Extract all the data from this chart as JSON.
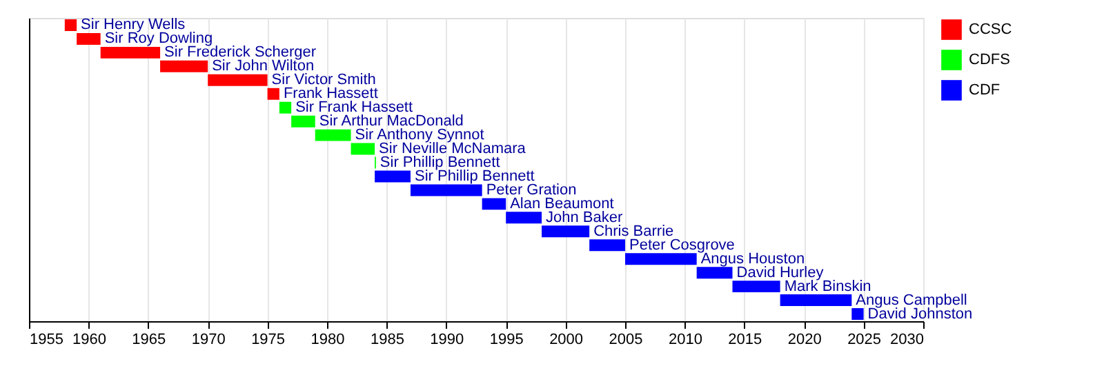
{
  "chart_data": {
    "type": "bar",
    "orientation": "horizontal",
    "categories": [
      "Sir Henry Wells",
      "Sir Roy Dowling",
      "Sir Frederick Scherger",
      "Sir John Wilton",
      "Sir Victor Smith",
      "Frank Hassett",
      "Sir Frank Hassett",
      "Sir Arthur MacDonald",
      "Sir Anthony Synnot",
      "Sir Neville McNamara",
      "Sir Phillip Bennett",
      "Sir Phillip Bennett",
      "Peter Gration",
      "Alan Beaumont",
      "John Baker",
      "Chris Barrie",
      "Peter Cosgrove",
      "Angus Houston",
      "David Hurley",
      "Mark Binskin",
      "Angus Campbell",
      "David Johnston"
    ],
    "series": [
      {
        "name": "CCSC",
        "color": "#ff0000",
        "base": [
          1958,
          1959,
          1961,
          1966,
          1970,
          1975,
          null,
          null,
          null,
          null,
          null,
          null,
          null,
          null,
          null,
          null,
          null,
          null,
          null,
          null,
          null,
          null
        ],
        "values": [
          1,
          2,
          5,
          4,
          5,
          1,
          null,
          null,
          null,
          null,
          null,
          null,
          null,
          null,
          null,
          null,
          null,
          null,
          null,
          null,
          null,
          null
        ]
      },
      {
        "name": "CDFS",
        "color": "#00ff00",
        "base": [
          null,
          null,
          null,
          null,
          null,
          null,
          1976,
          1977,
          1979,
          1982,
          1984,
          null,
          null,
          null,
          null,
          null,
          null,
          null,
          null,
          null,
          null,
          null
        ],
        "values": [
          null,
          null,
          null,
          null,
          null,
          null,
          1,
          2,
          3,
          2,
          0.1,
          null,
          null,
          null,
          null,
          null,
          null,
          null,
          null,
          null,
          null,
          null
        ]
      },
      {
        "name": "CDF",
        "color": "#0000ff",
        "base": [
          null,
          null,
          null,
          null,
          null,
          null,
          null,
          null,
          null,
          null,
          null,
          1984,
          1987,
          1993,
          1995,
          1998,
          2002,
          2005,
          2011,
          2014,
          2018,
          2024
        ],
        "values": [
          null,
          null,
          null,
          null,
          null,
          null,
          null,
          null,
          null,
          null,
          null,
          3,
          6,
          2,
          3,
          4,
          3,
          6,
          3,
          4,
          6,
          1
        ]
      }
    ],
    "xlim": [
      1955,
      2030
    ],
    "xticks": [
      1955,
      1960,
      1965,
      1970,
      1975,
      1980,
      1985,
      1990,
      1995,
      2000,
      2005,
      2010,
      2015,
      2020,
      2025,
      2030
    ],
    "grid": "x",
    "legend": "top right",
    "tick_labels": "x"
  }
}
